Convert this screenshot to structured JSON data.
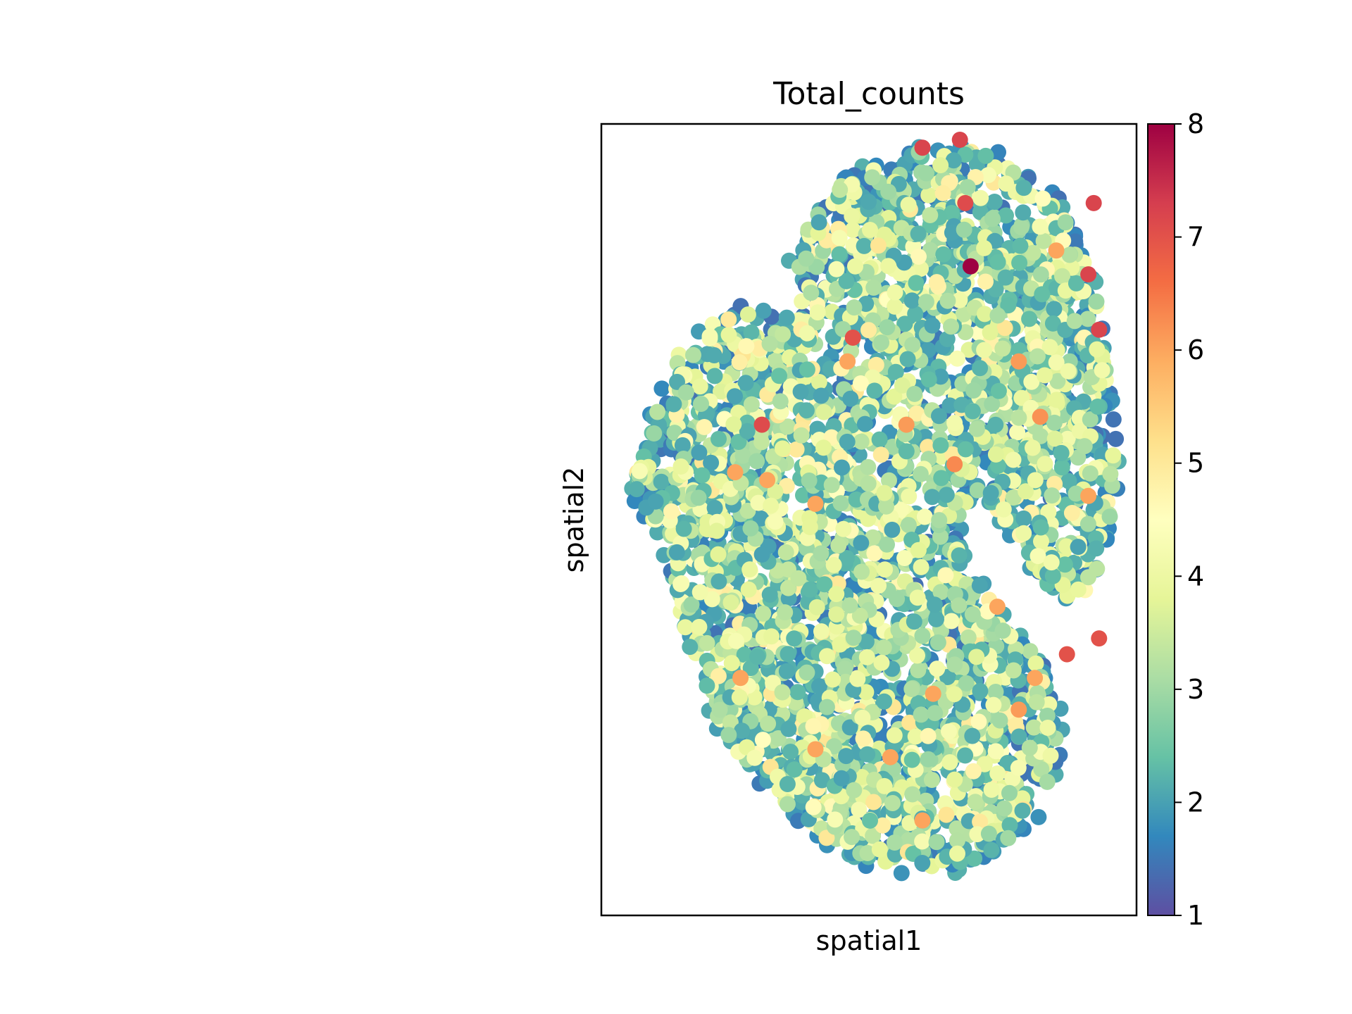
{
  "chart_data": {
    "type": "scatter",
    "title": "Total_counts",
    "xlabel": "spatial1",
    "ylabel": "spatial2",
    "xticks_visible": false,
    "yticks_visible": false,
    "grid": false,
    "colormap": "Spectral_r",
    "colorbar": {
      "label": "",
      "range": [
        1,
        8
      ],
      "ticks": [
        "1",
        "2",
        "3",
        "4",
        "5",
        "6",
        "7",
        "8"
      ],
      "colors": [
        "#5e4fa2",
        "#3288bd",
        "#66c2a5",
        "#abdda4",
        "#e6f598",
        "#ffffbf",
        "#fee08b",
        "#fdae61",
        "#f46d43",
        "#d53e4f",
        "#9e0142"
      ]
    },
    "highlight_points": [
      {
        "x": 0.69,
        "y": 0.82,
        "value": 8.0
      },
      {
        "x": 0.6,
        "y": 0.97,
        "value": 7.2
      },
      {
        "x": 0.67,
        "y": 0.98,
        "value": 7.2
      },
      {
        "x": 0.68,
        "y": 0.9,
        "value": 7.1
      },
      {
        "x": 0.91,
        "y": 0.81,
        "value": 7.2
      },
      {
        "x": 0.92,
        "y": 0.9,
        "value": 7.2
      },
      {
        "x": 0.3,
        "y": 0.62,
        "value": 7.1
      },
      {
        "x": 0.93,
        "y": 0.74,
        "value": 7.2
      },
      {
        "x": 0.93,
        "y": 0.35,
        "value": 7.0
      },
      {
        "x": 0.87,
        "y": 0.33,
        "value": 7.0
      },
      {
        "x": 0.47,
        "y": 0.73,
        "value": 7.0
      },
      {
        "x": 0.66,
        "y": 0.57,
        "value": 6.3
      },
      {
        "x": 0.31,
        "y": 0.55,
        "value": 6.0
      },
      {
        "x": 0.25,
        "y": 0.56,
        "value": 6.0
      },
      {
        "x": 0.4,
        "y": 0.52,
        "value": 6.0
      },
      {
        "x": 0.57,
        "y": 0.62,
        "value": 6.1
      },
      {
        "x": 0.78,
        "y": 0.7,
        "value": 6.1
      },
      {
        "x": 0.85,
        "y": 0.84,
        "value": 6.0
      },
      {
        "x": 0.82,
        "y": 0.63,
        "value": 6.2
      },
      {
        "x": 0.74,
        "y": 0.39,
        "value": 6.0
      },
      {
        "x": 0.81,
        "y": 0.3,
        "value": 6.0
      },
      {
        "x": 0.78,
        "y": 0.26,
        "value": 6.1
      },
      {
        "x": 0.46,
        "y": 0.7,
        "value": 6.0
      },
      {
        "x": 0.62,
        "y": 0.28,
        "value": 6.0
      },
      {
        "x": 0.4,
        "y": 0.21,
        "value": 6.0
      },
      {
        "x": 0.54,
        "y": 0.2,
        "value": 6.0
      },
      {
        "x": 0.6,
        "y": 0.12,
        "value": 6.0
      },
      {
        "x": 0.26,
        "y": 0.3,
        "value": 6.0
      },
      {
        "x": 0.91,
        "y": 0.53,
        "value": 6.0
      }
    ]
  }
}
